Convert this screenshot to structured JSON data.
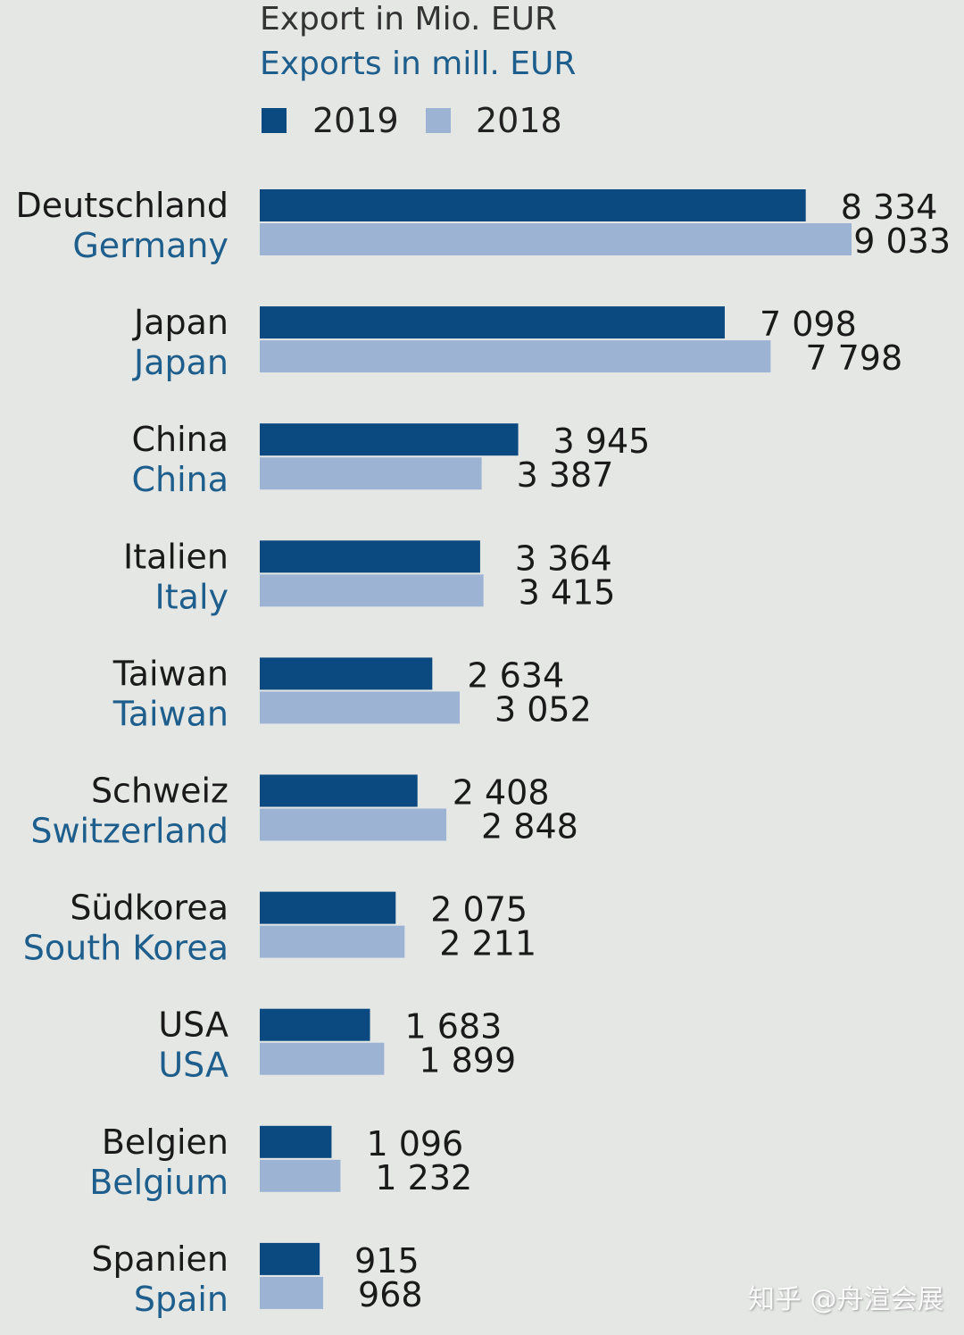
{
  "chart_data": {
    "type": "bar",
    "orientation": "horizontal",
    "title": "Export in Mio. EUR",
    "subtitle": "Exports in mill. EUR",
    "legend": [
      "2019",
      "2018"
    ],
    "legend_placement": "top",
    "categories_de": [
      "Deutschland",
      "Japan",
      "China",
      "Italien",
      "Taiwan",
      "Schweiz",
      "Südkorea",
      "USA",
      "Belgien",
      "Spanien"
    ],
    "categories": [
      "Germany",
      "Japan",
      "China",
      "Italy",
      "Taiwan",
      "Switzerland",
      "South Korea",
      "USA",
      "Belgium",
      "Spain"
    ],
    "series": [
      {
        "name": "2019",
        "values": [
          8334,
          7098,
          3945,
          3364,
          2634,
          2408,
          2075,
          1683,
          1096,
          915
        ],
        "labels": [
          "8 334",
          "7 098",
          "3 945",
          "3 364",
          "2 634",
          "2 408",
          "2 075",
          "1 683",
          "1 096",
          "915"
        ]
      },
      {
        "name": "2018",
        "values": [
          9033,
          7798,
          3387,
          3415,
          3052,
          2848,
          2211,
          1899,
          1232,
          968
        ],
        "labels": [
          "9 033",
          "7 798",
          "3 387",
          "3 415",
          "3 052",
          "2 848",
          "2 211",
          "1 899",
          "1 232",
          "968"
        ]
      }
    ],
    "xlim": [
      0,
      9033
    ],
    "grid": false
  },
  "colors": {
    "s2019": "#0b4a80",
    "s2018": "#9cb3d3",
    "english": "#1d5e8c",
    "background": "#e5e7e5"
  },
  "watermark": "知乎 @舟渲会展"
}
